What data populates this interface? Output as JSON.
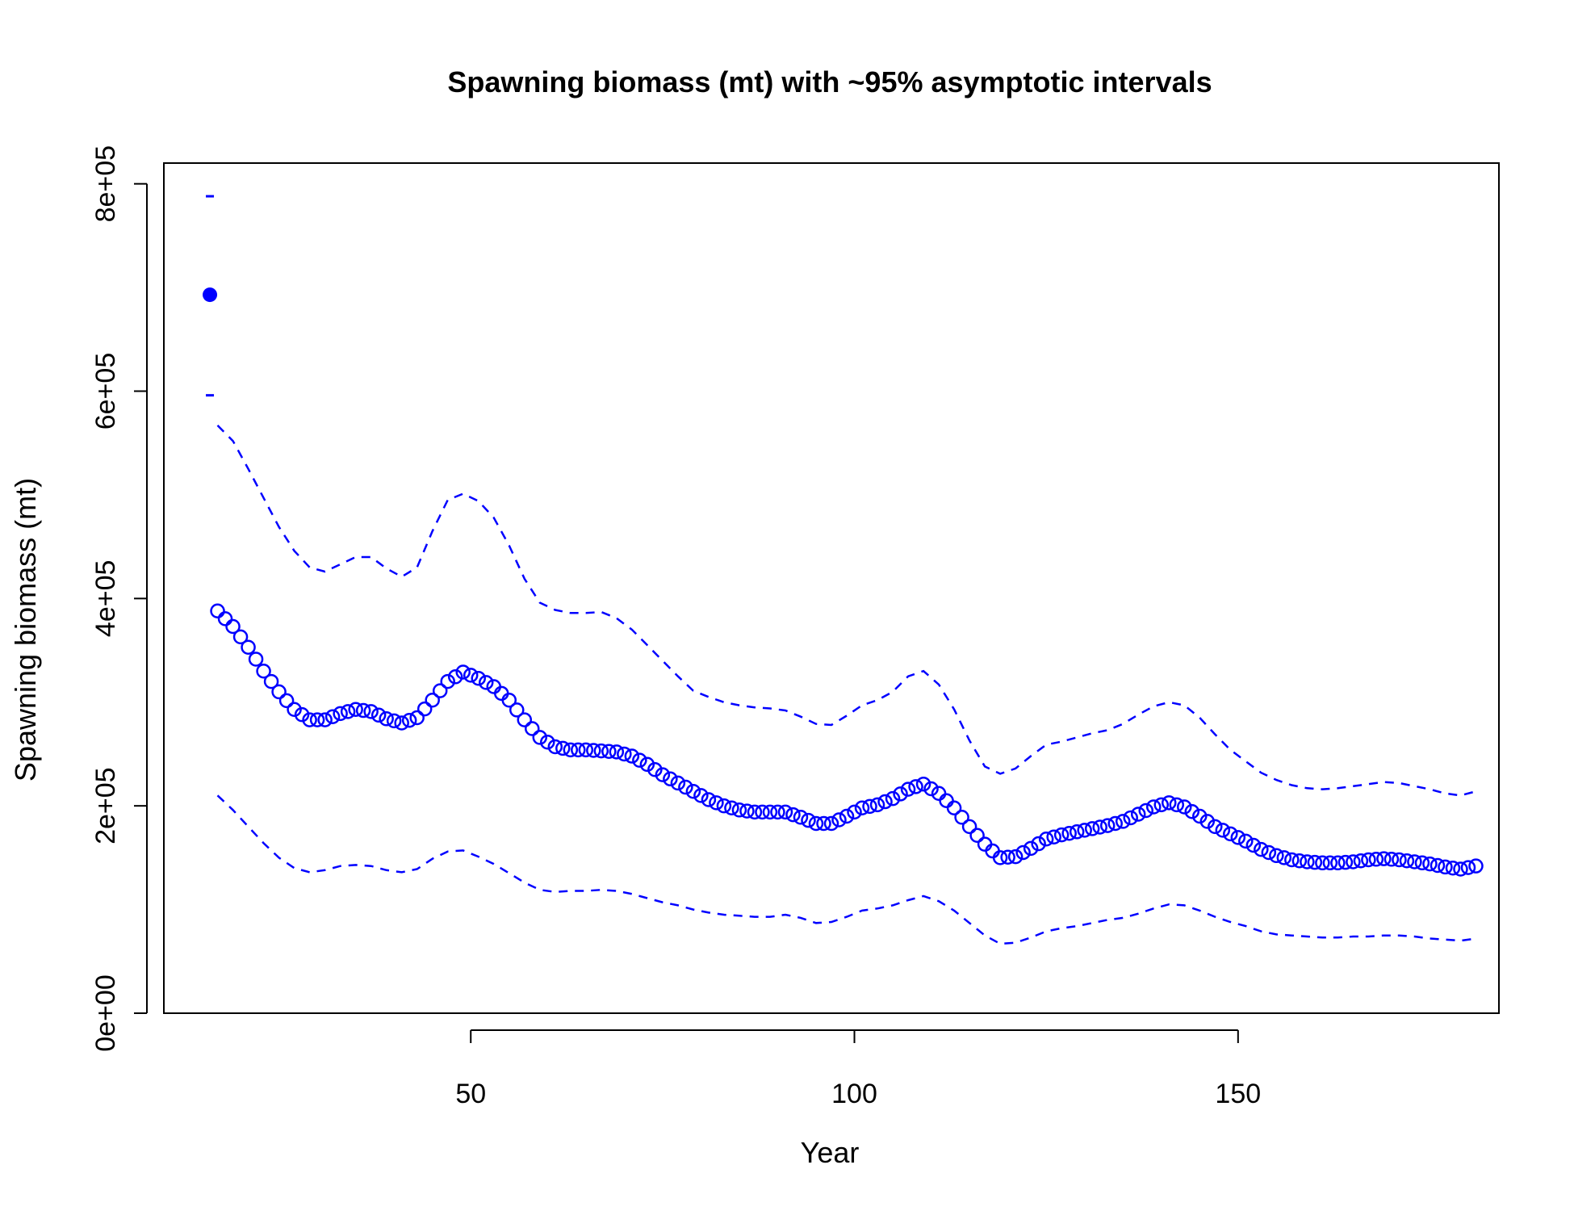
{
  "chart_data": {
    "type": "line",
    "title": "Spawning biomass (mt) with ~95% asymptotic intervals",
    "xlabel": "Year",
    "ylabel": "Spawning biomass (mt)",
    "xlim": [
      10,
      184
    ],
    "ylim": [
      0,
      820000
    ],
    "x_ticks": [
      50,
      100,
      150
    ],
    "x_tick_labels": [
      "50",
      "100",
      "150"
    ],
    "y_ticks": [
      0,
      200000,
      400000,
      600000,
      800000
    ],
    "y_tick_labels": [
      "0e+00",
      "2e+05",
      "4e+05",
      "6e+05",
      "8e+05"
    ],
    "grid": false,
    "color": "#0000ff",
    "virgin": {
      "x": 16,
      "value": 693000,
      "lower": 596000,
      "upper": 788000
    },
    "series": [
      {
        "x": [
          17,
          19,
          21,
          23,
          25,
          27,
          29,
          31,
          33,
          35,
          37,
          39,
          41,
          43,
          45,
          47,
          49,
          51,
          53,
          55,
          57,
          59,
          61,
          63,
          65,
          67,
          69,
          71,
          73,
          75,
          77,
          79,
          81,
          83,
          85,
          87,
          89,
          91,
          93,
          95,
          97,
          99,
          101,
          103,
          105,
          107,
          109,
          111,
          113,
          115,
          117,
          119,
          121,
          123,
          125,
          127,
          129,
          131,
          133,
          135,
          137,
          139,
          141,
          143,
          145,
          147,
          149,
          151,
          153,
          155,
          157,
          159,
          161,
          163,
          165,
          167,
          169,
          171,
          173,
          175,
          177,
          179,
          181
        ],
        "values": [
          388000,
          373000,
          353000,
          330000,
          310000,
          293000,
          283000,
          283000,
          289000,
          293000,
          291000,
          284000,
          280000,
          285000,
          302000,
          320000,
          329000,
          323000,
          315000,
          302000,
          283000,
          266000,
          257000,
          254000,
          254000,
          253000,
          252000,
          248000,
          240000,
          230000,
          222000,
          214000,
          206000,
          200000,
          196000,
          194000,
          194000,
          194000,
          189000,
          183000,
          183000,
          190000,
          198000,
          201000,
          207000,
          216000,
          221000,
          212000,
          198000,
          180000,
          163000,
          150000,
          151000,
          159000,
          168000,
          172000,
          175000,
          178000,
          181000,
          185000,
          192000,
          199000,
          203000,
          199000,
          190000,
          180000,
          173000,
          166000,
          158000,
          152000,
          148000,
          146000,
          145000,
          145000,
          146000,
          148000,
          149000,
          148000,
          146000,
          144000,
          141000,
          139000,
          142000
        ]
      },
      {
        "name": "upper",
        "x": [
          17,
          19,
          21,
          23,
          25,
          27,
          29,
          31,
          33,
          35,
          37,
          39,
          41,
          43,
          45,
          47,
          49,
          51,
          53,
          55,
          57,
          59,
          61,
          63,
          65,
          67,
          69,
          71,
          73,
          75,
          77,
          79,
          81,
          83,
          85,
          87,
          89,
          91,
          93,
          95,
          97,
          99,
          101,
          103,
          105,
          107,
          109,
          111,
          113,
          115,
          117,
          119,
          121,
          123,
          125,
          127,
          129,
          131,
          133,
          135,
          137,
          139,
          141,
          143,
          145,
          147,
          149,
          151,
          153,
          155,
          157,
          159,
          161,
          163,
          165,
          167,
          169,
          171,
          173,
          175,
          177,
          179,
          181
        ],
        "values": [
          567000,
          552000,
          525000,
          497000,
          469000,
          446000,
          430000,
          426000,
          433000,
          440000,
          440000,
          429000,
          421000,
          430000,
          465000,
          495000,
          501000,
          494000,
          478000,
          451000,
          419000,
          396000,
          389000,
          386000,
          386000,
          387000,
          381000,
          370000,
          355000,
          340000,
          325000,
          311000,
          305000,
          300000,
          297000,
          295000,
          294000,
          292000,
          286000,
          279000,
          278000,
          287000,
          297000,
          302000,
          310000,
          325000,
          330000,
          317000,
          293000,
          263000,
          238000,
          231000,
          236000,
          248000,
          259000,
          262000,
          266000,
          270000,
          273000,
          279000,
          288000,
          296000,
          300000,
          297000,
          285000,
          269000,
          254000,
          243000,
          232000,
          225000,
          220000,
          217000,
          216000,
          217000,
          219000,
          221000,
          223000,
          222000,
          219000,
          216000,
          212000,
          210000,
          214000
        ]
      },
      {
        "name": "lower",
        "x": [
          17,
          19,
          21,
          23,
          25,
          27,
          29,
          31,
          33,
          35,
          37,
          39,
          41,
          43,
          45,
          47,
          49,
          51,
          53,
          55,
          57,
          59,
          61,
          63,
          65,
          67,
          69,
          71,
          73,
          75,
          77,
          79,
          81,
          83,
          85,
          87,
          89,
          91,
          93,
          95,
          97,
          99,
          101,
          103,
          105,
          107,
          109,
          111,
          113,
          115,
          117,
          119,
          121,
          123,
          125,
          127,
          129,
          131,
          133,
          135,
          137,
          139,
          141,
          143,
          145,
          147,
          149,
          151,
          153,
          155,
          157,
          159,
          161,
          163,
          165,
          167,
          169,
          171,
          173,
          175,
          177,
          179,
          181
        ],
        "values": [
          210000,
          196000,
          180000,
          164000,
          150000,
          140000,
          136000,
          138000,
          142000,
          143000,
          142000,
          138000,
          136000,
          139000,
          149000,
          156000,
          157000,
          151000,
          144000,
          135000,
          126000,
          119000,
          117000,
          118000,
          118000,
          119000,
          118000,
          115000,
          111000,
          107000,
          104000,
          100000,
          97000,
          95000,
          94000,
          93000,
          93000,
          95000,
          92000,
          87000,
          88000,
          93000,
          99000,
          101000,
          104000,
          109000,
          113000,
          108000,
          99000,
          87000,
          75000,
          67000,
          68000,
          73000,
          79000,
          82000,
          84000,
          87000,
          90000,
          92000,
          96000,
          101000,
          105000,
          104000,
          99000,
          93000,
          88000,
          84000,
          79000,
          76000,
          75000,
          74000,
          73000,
          73000,
          74000,
          74000,
          75000,
          75000,
          74000,
          72000,
          71000,
          70000,
          72000
        ]
      }
    ]
  }
}
